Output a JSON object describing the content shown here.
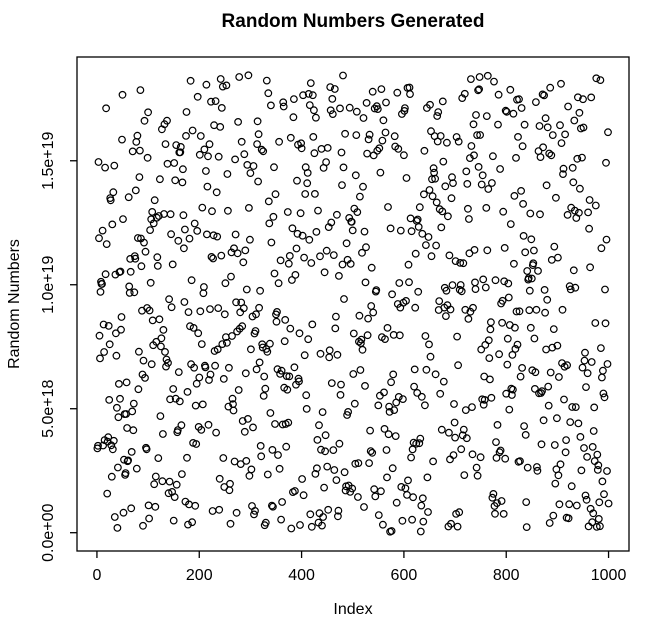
{
  "window": {
    "background_color": "#ffffff",
    "foreground_color": "#000000"
  },
  "chart_data": {
    "type": "scatter",
    "title": "Random Numbers Generated",
    "xlabel": "Index",
    "ylabel": "Random Numbers",
    "n_points": 1000,
    "x_series": "sequential index 1..1000",
    "y_series": "uniform random values between 0 and 1.8446744e19 (no trend, no clustering)",
    "xlim": [
      1,
      1000
    ],
    "ylim": [
      0,
      1.8446744e+19
    ],
    "axis_expansion_fraction": 0.04,
    "x_ticks": {
      "values": [
        0,
        200,
        400,
        600,
        800,
        1000
      ],
      "labels": [
        "0",
        "200",
        "400",
        "600",
        "800",
        "1000"
      ]
    },
    "y_ticks": {
      "values": [
        0,
        5e+18,
        1e+19,
        1.5e+19
      ],
      "labels": [
        "0.0e+00",
        "5.0e+18",
        "1.0e+19",
        "1.5e+19"
      ],
      "label_rotation_degrees": -90
    },
    "marker": {
      "shape": "open-circle",
      "radius_px": 3.3,
      "stroke_color": "#000000"
    },
    "grid": false,
    "legend": false,
    "frame": "full-box",
    "seed": 1337
  }
}
